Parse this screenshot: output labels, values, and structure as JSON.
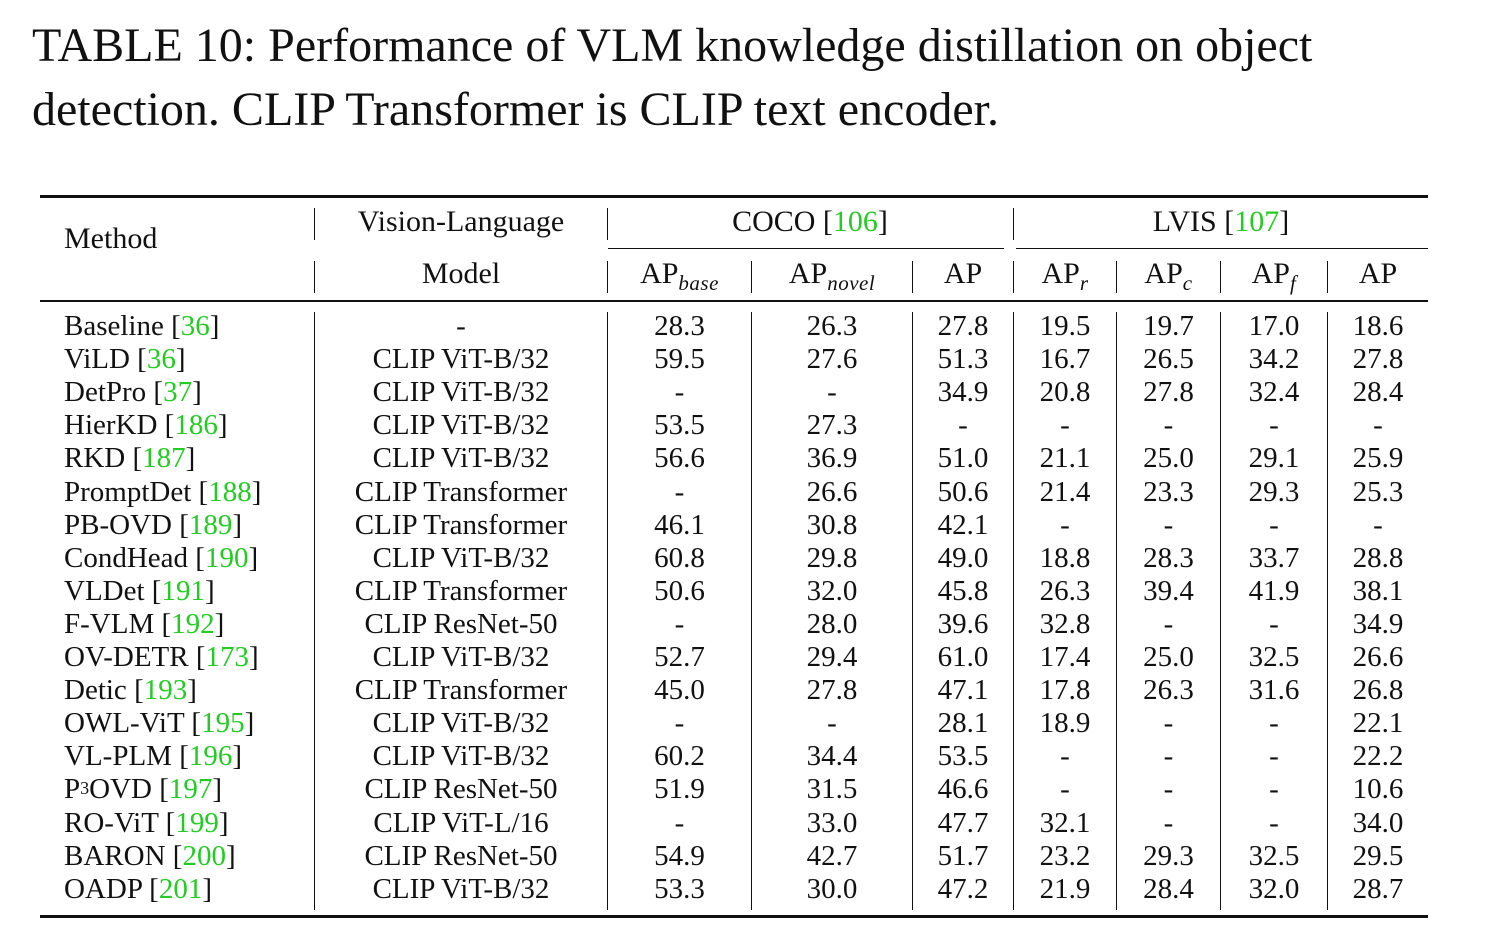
{
  "caption": "TABLE 10: Performance of VLM knowledge distillation on object detection. CLIP Transformer is CLIP text encoder.",
  "header": {
    "method": "Method",
    "vlm_line1": "Vision-Language",
    "vlm_line2": "Model",
    "coco": "COCO",
    "coco_ref": "106",
    "lvis": "LVIS",
    "lvis_ref": "107",
    "ap_base_main": "AP",
    "ap_base_sub": "base",
    "ap_novel_main": "AP",
    "ap_novel_sub": "novel",
    "ap": "AP",
    "ap_r_main": "AP",
    "ap_r_sub": "r",
    "ap_c_main": "AP",
    "ap_c_sub": "c",
    "ap_f_main": "AP",
    "ap_f_sub": "f",
    "ap_lvis": "AP"
  },
  "rows": [
    {
      "method": "Baseline",
      "ref": "36",
      "model": "-",
      "ap_base": "28.3",
      "ap_novel": "26.3",
      "ap_coco": "27.8",
      "ap_r": "19.5",
      "ap_c": "19.7",
      "ap_f": "17.0",
      "ap_lvis": "18.6"
    },
    {
      "method": "ViLD",
      "ref": "36",
      "model": "CLIP ViT-B/32",
      "ap_base": "59.5",
      "ap_novel": "27.6",
      "ap_coco": "51.3",
      "ap_r": "16.7",
      "ap_c": "26.5",
      "ap_f": "34.2",
      "ap_lvis": "27.8"
    },
    {
      "method": "DetPro",
      "ref": "37",
      "model": "CLIP ViT-B/32",
      "ap_base": "-",
      "ap_novel": "-",
      "ap_coco": "34.9",
      "ap_r": "20.8",
      "ap_c": "27.8",
      "ap_f": "32.4",
      "ap_lvis": "28.4"
    },
    {
      "method": "HierKD",
      "ref": "186",
      "model": "CLIP ViT-B/32",
      "ap_base": "53.5",
      "ap_novel": "27.3",
      "ap_coco": "-",
      "ap_r": "-",
      "ap_c": "-",
      "ap_f": "-",
      "ap_lvis": "-"
    },
    {
      "method": "RKD",
      "ref": "187",
      "model": "CLIP ViT-B/32",
      "ap_base": "56.6",
      "ap_novel": "36.9",
      "ap_coco": "51.0",
      "ap_r": "21.1",
      "ap_c": "25.0",
      "ap_f": "29.1",
      "ap_lvis": "25.9"
    },
    {
      "method": "PromptDet",
      "ref": "188",
      "model": "CLIP Transformer",
      "ap_base": "-",
      "ap_novel": "26.6",
      "ap_coco": "50.6",
      "ap_r": "21.4",
      "ap_c": "23.3",
      "ap_f": "29.3",
      "ap_lvis": "25.3"
    },
    {
      "method": "PB-OVD",
      "ref": "189",
      "model": "CLIP Transformer",
      "ap_base": "46.1",
      "ap_novel": "30.8",
      "ap_coco": "42.1",
      "ap_r": "-",
      "ap_c": "-",
      "ap_f": "-",
      "ap_lvis": "-"
    },
    {
      "method": "CondHead",
      "ref": "190",
      "model": "CLIP ViT-B/32",
      "ap_base": "60.8",
      "ap_novel": "29.8",
      "ap_coco": "49.0",
      "ap_r": "18.8",
      "ap_c": "28.3",
      "ap_f": "33.7",
      "ap_lvis": "28.8"
    },
    {
      "method": "VLDet",
      "ref": "191",
      "model": "CLIP Transformer",
      "ap_base": "50.6",
      "ap_novel": "32.0",
      "ap_coco": "45.8",
      "ap_r": "26.3",
      "ap_c": "39.4",
      "ap_f": "41.9",
      "ap_lvis": "38.1"
    },
    {
      "method": "F-VLM",
      "ref": "192",
      "model": "CLIP ResNet-50",
      "ap_base": "-",
      "ap_novel": "28.0",
      "ap_coco": "39.6",
      "ap_r": "32.8",
      "ap_c": "-",
      "ap_f": "-",
      "ap_lvis": "34.9"
    },
    {
      "method": "OV-DETR",
      "ref": "173",
      "model": "CLIP ViT-B/32",
      "ap_base": "52.7",
      "ap_novel": "29.4",
      "ap_coco": "61.0",
      "ap_r": "17.4",
      "ap_c": "25.0",
      "ap_f": "32.5",
      "ap_lvis": "26.6"
    },
    {
      "method": "Detic",
      "ref": "193",
      "model": "CLIP Transformer",
      "ap_base": "45.0",
      "ap_novel": "27.8",
      "ap_coco": "47.1",
      "ap_r": "17.8",
      "ap_c": "26.3",
      "ap_f": "31.6",
      "ap_lvis": "26.8"
    },
    {
      "method": "OWL-ViT",
      "ref": "195",
      "model": "CLIP ViT-B/32",
      "ap_base": "-",
      "ap_novel": "-",
      "ap_coco": "28.1",
      "ap_r": "18.9",
      "ap_c": "-",
      "ap_f": "-",
      "ap_lvis": "22.1"
    },
    {
      "method": "VL-PLM",
      "ref": "196",
      "model": "CLIP ViT-B/32",
      "ap_base": "60.2",
      "ap_novel": "34.4",
      "ap_coco": "53.5",
      "ap_r": "-",
      "ap_c": "-",
      "ap_f": "-",
      "ap_lvis": "22.2"
    },
    {
      "method": "P",
      "method_sup": "3",
      "method_tail": "OVD",
      "ref": "197",
      "model": "CLIP ResNet-50",
      "ap_base": "51.9",
      "ap_novel": "31.5",
      "ap_coco": "46.6",
      "ap_r": "-",
      "ap_c": "-",
      "ap_f": "-",
      "ap_lvis": "10.6"
    },
    {
      "method": "RO-ViT",
      "ref": "199",
      "model": "CLIP ViT-L/16",
      "ap_base": "-",
      "ap_novel": "33.0",
      "ap_coco": "47.7",
      "ap_r": "32.1",
      "ap_c": "-",
      "ap_f": "-",
      "ap_lvis": "34.0"
    },
    {
      "method": "BARON",
      "ref": "200",
      "model": "CLIP ResNet-50",
      "ap_base": "54.9",
      "ap_novel": "42.7",
      "ap_coco": "51.7",
      "ap_r": "23.2",
      "ap_c": "29.3",
      "ap_f": "32.5",
      "ap_lvis": "29.5"
    },
    {
      "method": "OADP",
      "ref": "201",
      "model": "CLIP ViT-B/32",
      "ap_base": "53.3",
      "ap_novel": "30.0",
      "ap_coco": "47.2",
      "ap_r": "21.9",
      "ap_c": "28.4",
      "ap_f": "32.0",
      "ap_lvis": "28.7"
    }
  ]
}
